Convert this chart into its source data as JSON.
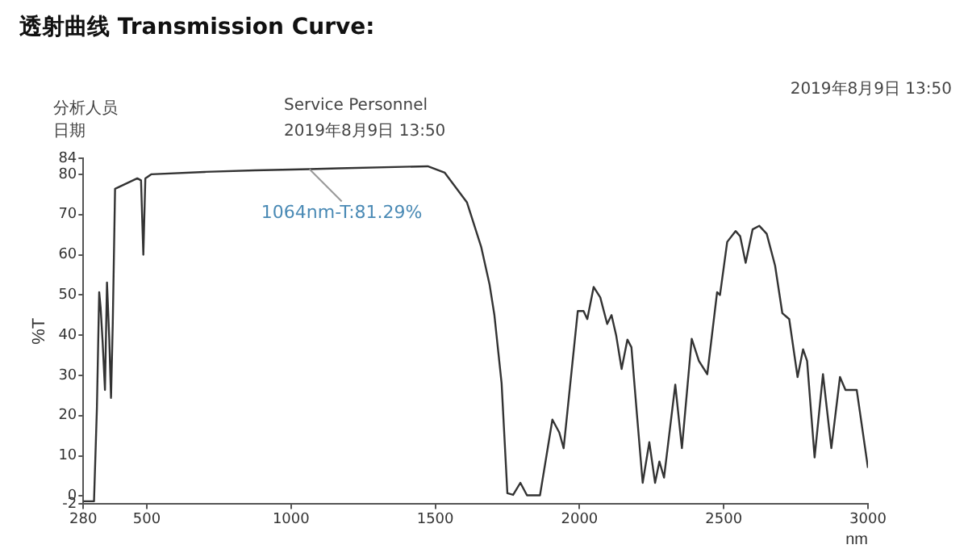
{
  "chart_data": {
    "type": "line",
    "title": "透射曲线 Transmission Curve:",
    "xlabel": "nm",
    "ylabel": "%T",
    "color": "#333333",
    "x": [
      280,
      317,
      327,
      335,
      340,
      347,
      355,
      362,
      370,
      376,
      382,
      390,
      467,
      480,
      488,
      495,
      515,
      700,
      874,
      1064,
      1165,
      1474,
      1533,
      1610,
      1659,
      1688,
      1705,
      1730,
      1750,
      1770,
      1795,
      1818,
      1863,
      1906,
      1930,
      1945,
      1994,
      2014,
      2027,
      2049,
      2072,
      2096,
      2111,
      2127,
      2146,
      2166,
      2180,
      2199,
      2219,
      2242,
      2262,
      2277,
      2293,
      2332,
      2355,
      2389,
      2414,
      2443,
      2477,
      2487,
      2512,
      2541,
      2557,
      2576,
      2600,
      2623,
      2649,
      2678,
      2703,
      2727,
      2756,
      2775,
      2789,
      2815,
      2844,
      2873,
      2903,
      2922,
      2961,
      3000
    ],
    "values": [
      -1.3,
      -1.3,
      21.7,
      50.7,
      46.8,
      38.2,
      26.4,
      53.1,
      38.9,
      24.4,
      42.8,
      76.4,
      79,
      78.5,
      60,
      79,
      80,
      80.6,
      81,
      81.29,
      81.5,
      82,
      80.4,
      73,
      62,
      52.7,
      45,
      28,
      0.7,
      0.3,
      3.3,
      0.2,
      0.2,
      19,
      15.8,
      11.9,
      46,
      46,
      44,
      52,
      49.4,
      42.8,
      45,
      40,
      31.6,
      38.9,
      37,
      20.4,
      3.3,
      13.4,
      3.3,
      8.6,
      4.6,
      27.7,
      11.9,
      39.1,
      33.6,
      30.3,
      50.7,
      50,
      63.2,
      65.9,
      64.6,
      58,
      66.3,
      67.2,
      65.2,
      57.3,
      45.5,
      44,
      29.6,
      36.5,
      33.6,
      9.6,
      30.3,
      11.9,
      29.6,
      26.4,
      26.4,
      7
    ],
    "xlim": [
      280,
      3000
    ],
    "xticks": [
      280,
      500,
      1000,
      1500,
      2000,
      2500,
      3000
    ],
    "ylim": [
      -2,
      84
    ],
    "yticks": [
      -2,
      0,
      10,
      20,
      30,
      40,
      50,
      60,
      70,
      80,
      84
    ],
    "annotations": [
      {
        "text": "1064nm-T:81.29%",
        "x": 1064,
        "y": 81.29
      },
      "分析人员",
      "日期",
      "Service Personnel",
      "2019年8月9日 13:50",
      "2019年8月9日 13:50"
    ]
  }
}
